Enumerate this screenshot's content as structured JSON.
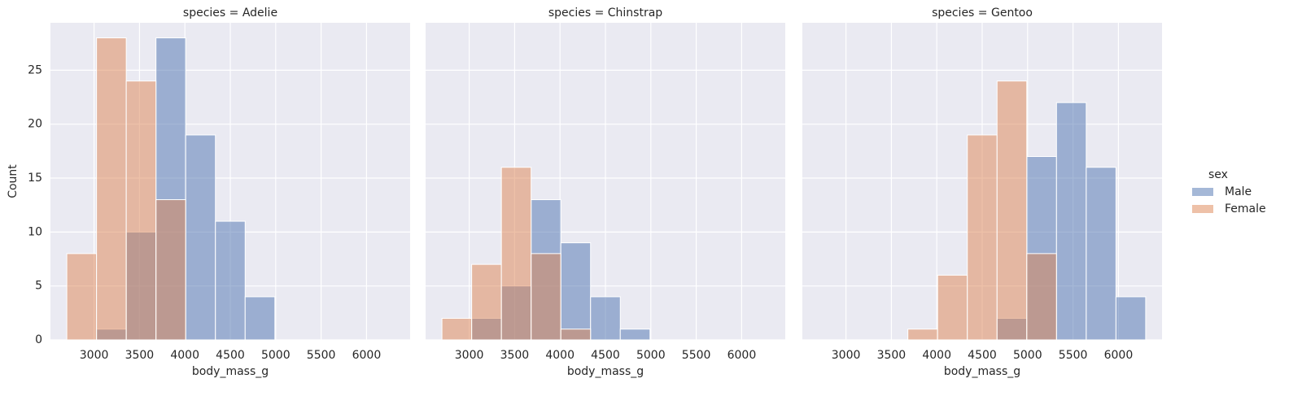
{
  "chart_data": [
    {
      "type": "histogram",
      "title": "species = Adelie",
      "x_label": "body_mass_g",
      "y_label": "Count",
      "bins": [
        2700,
        3027.27,
        3354.55,
        3681.82,
        4009.09,
        4336.36,
        4663.64,
        4990.91,
        5318.18,
        5645.45,
        5972.73,
        6300
      ],
      "series": [
        {
          "name": "Male",
          "color": "#4c72b0",
          "values": [
            0,
            1,
            10,
            28,
            19,
            11,
            4,
            0,
            0,
            0,
            0
          ]
        },
        {
          "name": "Female",
          "color": "#dd8452",
          "values": [
            8,
            28,
            24,
            13,
            0,
            0,
            0,
            0,
            0,
            0,
            0
          ]
        }
      ],
      "xlim": [
        2520,
        6480
      ],
      "xticks": [
        3000,
        3500,
        4000,
        4500,
        5000,
        5500,
        6000
      ],
      "ylim": [
        0,
        29.4
      ],
      "yticks": [
        0,
        5,
        10,
        15,
        20,
        25
      ],
      "grid": true
    },
    {
      "type": "histogram",
      "title": "species = Chinstrap",
      "x_label": "body_mass_g",
      "bins": [
        2700,
        3027.27,
        3354.55,
        3681.82,
        4009.09,
        4336.36,
        4663.64,
        4990.91,
        5318.18,
        5645.45,
        5972.73,
        6300
      ],
      "series": [
        {
          "name": "Male",
          "color": "#4c72b0",
          "values": [
            0,
            2,
            5,
            13,
            9,
            4,
            1,
            0,
            0,
            0,
            0
          ]
        },
        {
          "name": "Female",
          "color": "#dd8452",
          "values": [
            2,
            7,
            16,
            8,
            1,
            0,
            0,
            0,
            0,
            0,
            0
          ]
        }
      ],
      "xlim": [
        2520,
        6480
      ],
      "xticks": [
        3000,
        3500,
        4000,
        4500,
        5000,
        5500,
        6000
      ],
      "ylim": [
        0,
        29.4
      ],
      "yticks": [
        0,
        5,
        10,
        15,
        20,
        25
      ],
      "grid": true
    },
    {
      "type": "histogram",
      "title": "species = Gentoo",
      "x_label": "body_mass_g",
      "bins": [
        2700,
        3027.27,
        3354.55,
        3681.82,
        4009.09,
        4336.36,
        4663.64,
        4990.91,
        5318.18,
        5645.45,
        5972.73,
        6300
      ],
      "series": [
        {
          "name": "Male",
          "color": "#4c72b0",
          "values": [
            0,
            0,
            0,
            0,
            0,
            0,
            2,
            17,
            22,
            16,
            4
          ]
        },
        {
          "name": "Female",
          "color": "#dd8452",
          "values": [
            0,
            0,
            0,
            1,
            6,
            19,
            24,
            8,
            0,
            0,
            0
          ]
        }
      ],
      "xlim": [
        2520,
        6480
      ],
      "xticks": [
        3000,
        3500,
        4000,
        4500,
        5000,
        5500,
        6000
      ],
      "ylim": [
        0,
        29.4
      ],
      "yticks": [
        0,
        5,
        10,
        15,
        20,
        25
      ],
      "grid": true
    }
  ],
  "legend_title": "sex"
}
